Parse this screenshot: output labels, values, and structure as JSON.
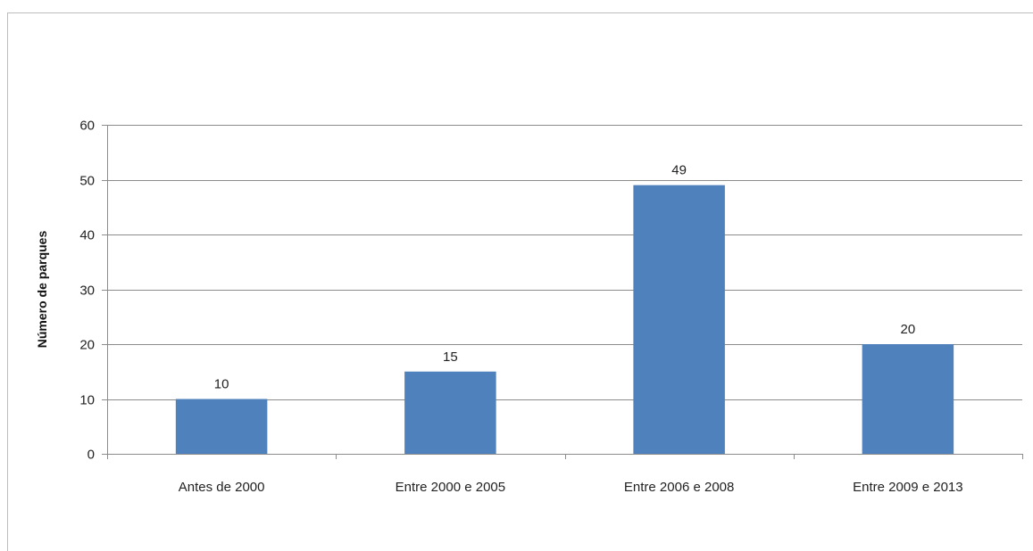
{
  "chart_data": {
    "type": "bar",
    "title": "",
    "xlabel": "",
    "ylabel": "Número de parques",
    "categories": [
      "Antes de 2000",
      "Entre 2000 e 2005",
      "Entre 2006 e 2008",
      "Entre 2009 e 2013"
    ],
    "values": [
      10,
      15,
      49,
      20
    ],
    "data_labels": [
      "10",
      "15",
      "49",
      "20"
    ],
    "ylim": [
      0,
      60
    ],
    "yticks": [
      0,
      10,
      20,
      30,
      40,
      50,
      60
    ],
    "ytick_labels": [
      "0",
      "10",
      "20",
      "30",
      "40",
      "50",
      "60"
    ],
    "grid": true,
    "legend": "none",
    "bar_color": "#4f81bd",
    "grid_color": "#8c8c8c"
  }
}
